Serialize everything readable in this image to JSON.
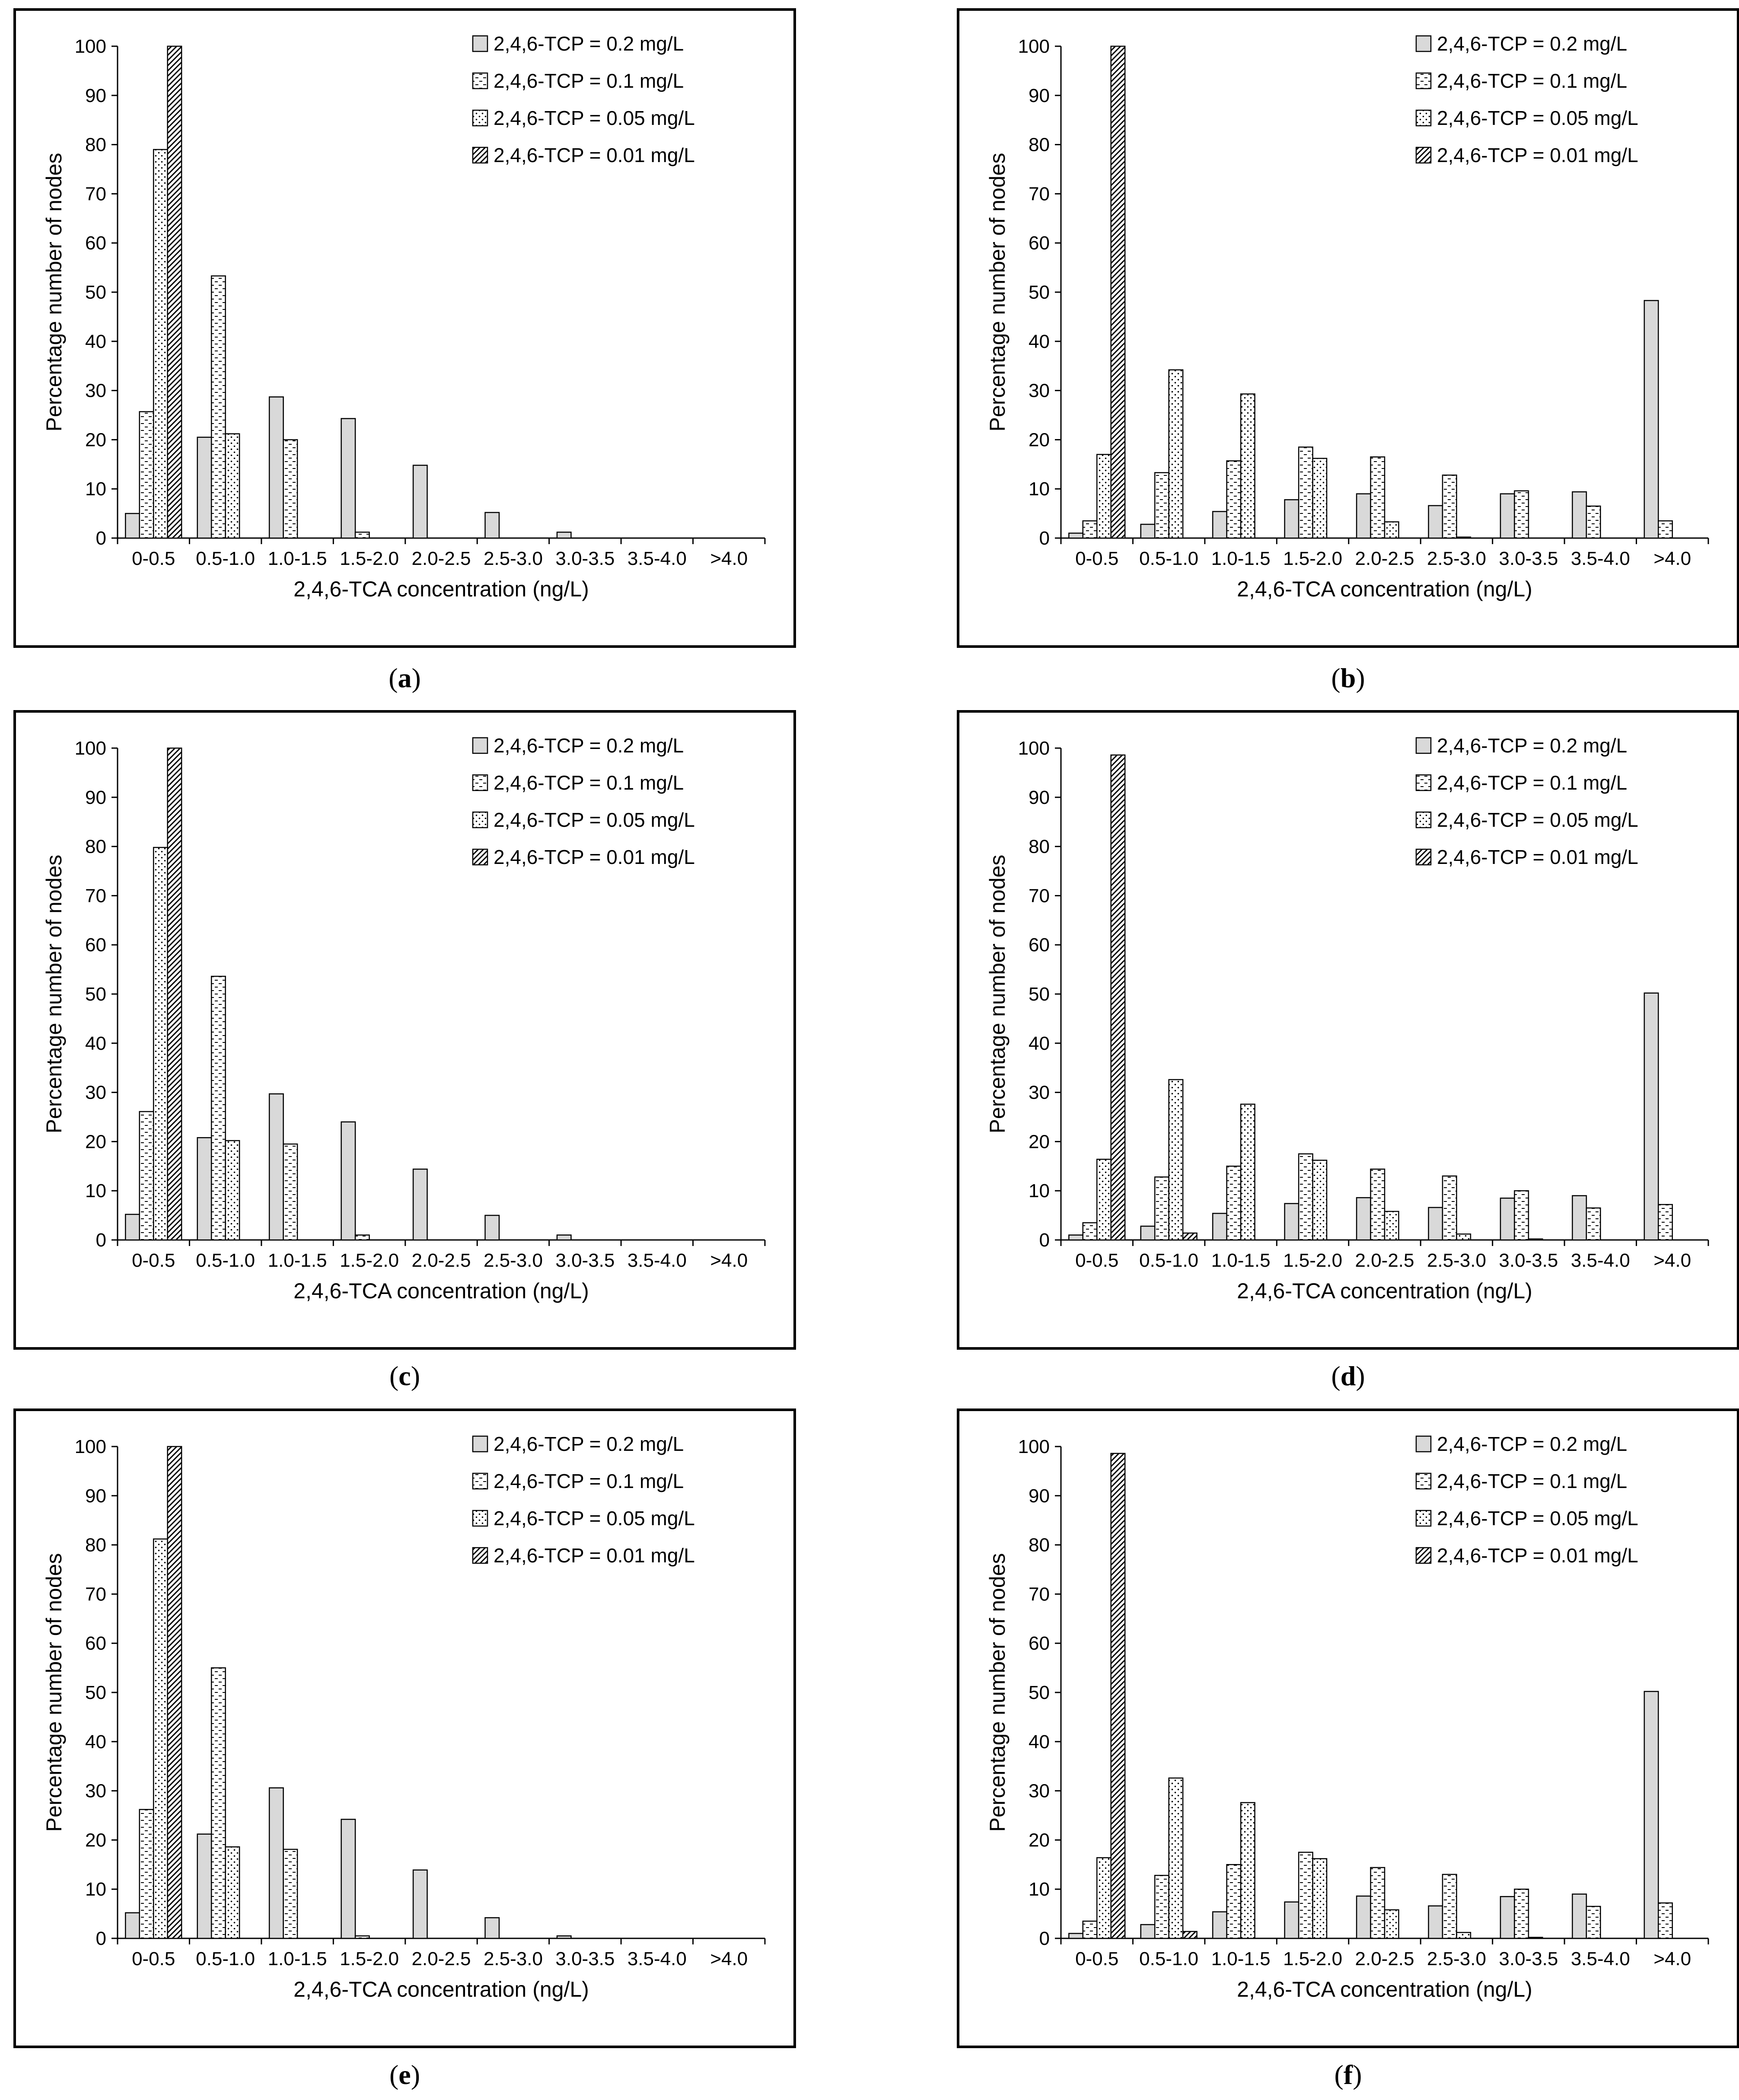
{
  "figure": {
    "captions": [
      "(a)",
      "(b)",
      "(c)",
      "(d)",
      "(e)",
      "(f)"
    ],
    "caption_letters": [
      "a",
      "b",
      "c",
      "d",
      "e",
      "f"
    ]
  },
  "styles": {
    "series_fills": [
      "#d9d9d9",
      "pattern-white",
      "pattern-dots",
      "pattern-hatch"
    ]
  },
  "chart_data": [
    {
      "type": "bar",
      "panel": "a",
      "title": "",
      "xlabel": "2,4,6-TCA concentration (ng/L)",
      "ylabel": "Percentage number of nodes",
      "ylim": [
        0,
        100
      ],
      "yticks": [
        "0",
        "10",
        "20",
        "30",
        "40",
        "50",
        "60",
        "70",
        "80",
        "90",
        "100"
      ],
      "categories": [
        "0-0.5",
        "0.5-1.0",
        "1.0-1.5",
        "1.5-2.0",
        "2.0-2.5",
        "2.5-3.0",
        "3.0-3.5",
        "3.5-4.0",
        ">4.0"
      ],
      "legend_position": "top-right",
      "series": [
        {
          "name": "2,4,6-TCP = 0.2 mg/L",
          "values": [
            5,
            20.5,
            28.7,
            24.3,
            14.8,
            5.2,
            1.2,
            0,
            0
          ]
        },
        {
          "name": "2,4,6-TCP = 0.1 mg/L",
          "values": [
            25.7,
            53.3,
            20,
            1.2,
            0,
            0,
            0,
            0,
            0
          ]
        },
        {
          "name": "2,4,6-TCP = 0.05 mg/L",
          "values": [
            79,
            21.2,
            0,
            0,
            0,
            0,
            0,
            0,
            0
          ]
        },
        {
          "name": "2,4,6-TCP = 0.01 mg/L",
          "values": [
            100,
            0,
            0,
            0,
            0,
            0,
            0,
            0,
            0
          ]
        }
      ]
    },
    {
      "type": "bar",
      "panel": "b",
      "title": "",
      "xlabel": "2,4,6-TCA concentration (ng/L)",
      "ylabel": "Percentage number of nodes",
      "ylim": [
        0,
        100
      ],
      "yticks": [
        "0",
        "10",
        "20",
        "30",
        "40",
        "50",
        "60",
        "70",
        "80",
        "90",
        "100"
      ],
      "categories": [
        "0-0.5",
        "0.5-1.0",
        "1.0-1.5",
        "1.5-2.0",
        "2.0-2.5",
        "2.5-3.0",
        "3.0-3.5",
        "3.5-4.0",
        ">4.0"
      ],
      "legend_position": "top-right",
      "series": [
        {
          "name": "2,4,6-TCP = 0.2 mg/L",
          "values": [
            1,
            2.8,
            5.4,
            7.8,
            9,
            6.6,
            9,
            9.4,
            48.3
          ]
        },
        {
          "name": "2,4,6-TCP = 0.1 mg/L",
          "values": [
            3.5,
            13.3,
            15.7,
            18.5,
            16.5,
            12.8,
            9.6,
            6.5,
            3.5
          ]
        },
        {
          "name": "2,4,6-TCP = 0.05 mg/L",
          "values": [
            17,
            34.2,
            29.3,
            16.2,
            3.3,
            0.2,
            0,
            0,
            0
          ]
        },
        {
          "name": "2,4,6-TCP = 0.01 mg/L",
          "values": [
            100,
            0,
            0,
            0,
            0,
            0,
            0,
            0,
            0
          ]
        }
      ]
    },
    {
      "type": "bar",
      "panel": "c",
      "title": "",
      "xlabel": "2,4,6-TCA concentration (ng/L)",
      "ylabel": "Percentage number of nodes",
      "ylim": [
        0,
        100
      ],
      "yticks": [
        "0",
        "10",
        "20",
        "30",
        "40",
        "50",
        "60",
        "70",
        "80",
        "90",
        "100"
      ],
      "categories": [
        "0-0.5",
        "0.5-1.0",
        "1.0-1.5",
        "1.5-2.0",
        "2.0-2.5",
        "2.5-3.0",
        "3.0-3.5",
        "3.5-4.0",
        ">4.0"
      ],
      "legend_position": "top-right",
      "series": [
        {
          "name": "2,4,6-TCP = 0.2 mg/L",
          "values": [
            5.2,
            20.8,
            29.7,
            24,
            14.4,
            5,
            1,
            0,
            0
          ]
        },
        {
          "name": "2,4,6-TCP = 0.1 mg/L",
          "values": [
            26.1,
            53.6,
            19.5,
            1,
            0,
            0,
            0,
            0,
            0
          ]
        },
        {
          "name": "2,4,6-TCP = 0.05 mg/L",
          "values": [
            79.8,
            20.2,
            0,
            0,
            0,
            0,
            0,
            0,
            0
          ]
        },
        {
          "name": "2,4,6-TCP = 0.01 mg/L",
          "values": [
            100,
            0,
            0,
            0,
            0,
            0,
            0,
            0,
            0
          ]
        }
      ]
    },
    {
      "type": "bar",
      "panel": "d",
      "title": "",
      "xlabel": "2,4,6-TCA concentration (ng/L)",
      "ylabel": "Percentage number of nodes",
      "ylim": [
        0,
        100
      ],
      "yticks": [
        "0",
        "10",
        "20",
        "30",
        "40",
        "50",
        "60",
        "70",
        "80",
        "90",
        "100"
      ],
      "categories": [
        "0-0.5",
        "0.5-1.0",
        "1.0-1.5",
        "1.5-2.0",
        "2.0-2.5",
        "2.5-3.0",
        "3.0-3.5",
        "3.5-4.0",
        ">4.0"
      ],
      "legend_position": "top-right",
      "series": [
        {
          "name": "2,4,6-TCP = 0.2 mg/L",
          "values": [
            1,
            2.8,
            5.4,
            7.4,
            8.6,
            6.6,
            8.5,
            9,
            50.2
          ]
        },
        {
          "name": "2,4,6-TCP = 0.1 mg/L",
          "values": [
            3.5,
            12.8,
            15,
            17.5,
            14.4,
            13,
            10,
            6.5,
            7.2
          ]
        },
        {
          "name": "2,4,6-TCP = 0.05 mg/L",
          "values": [
            16.4,
            32.6,
            27.6,
            16.2,
            5.8,
            1.2,
            0.2,
            0,
            0
          ]
        },
        {
          "name": "2,4,6-TCP = 0.01 mg/L",
          "values": [
            98.6,
            1.4,
            0,
            0,
            0,
            0,
            0,
            0,
            0
          ]
        }
      ]
    },
    {
      "type": "bar",
      "panel": "e",
      "title": "",
      "xlabel": "2,4,6-TCA concentration (ng/L)",
      "ylabel": "Percentage number of nodes",
      "ylim": [
        0,
        100
      ],
      "yticks": [
        "0",
        "10",
        "20",
        "30",
        "40",
        "50",
        "60",
        "70",
        "80",
        "90",
        "100"
      ],
      "categories": [
        "0-0.5",
        "0.5-1.0",
        "1.0-1.5",
        "1.5-2.0",
        "2.0-2.5",
        "2.5-3.0",
        "3.0-3.5",
        "3.5-4.0",
        ">4.0"
      ],
      "legend_position": "top-right",
      "series": [
        {
          "name": "2,4,6-TCP = 0.2 mg/L",
          "values": [
            5.2,
            21.2,
            30.6,
            24.2,
            13.9,
            4.2,
            0.5,
            0,
            0
          ]
        },
        {
          "name": "2,4,6-TCP = 0.1 mg/L",
          "values": [
            26.2,
            55,
            18.1,
            0.5,
            0,
            0,
            0,
            0,
            0
          ]
        },
        {
          "name": "2,4,6-TCP = 0.05 mg/L",
          "values": [
            81.2,
            18.6,
            0,
            0,
            0,
            0,
            0,
            0,
            0
          ]
        },
        {
          "name": "2,4,6-TCP = 0.01 mg/L",
          "values": [
            100,
            0,
            0,
            0,
            0,
            0,
            0,
            0,
            0
          ]
        }
      ]
    },
    {
      "type": "bar",
      "panel": "f",
      "title": "",
      "xlabel": "2,4,6-TCA concentration (ng/L)",
      "ylabel": "Percentage number of nodes",
      "ylim": [
        0,
        100
      ],
      "yticks": [
        "0",
        "10",
        "20",
        "30",
        "40",
        "50",
        "60",
        "70",
        "80",
        "90",
        "100"
      ],
      "categories": [
        "0-0.5",
        "0.5-1.0",
        "1.0-1.5",
        "1.5-2.0",
        "2.0-2.5",
        "2.5-3.0",
        "3.0-3.5",
        "3.5-4.0",
        ">4.0"
      ],
      "legend_position": "top-right",
      "series": [
        {
          "name": "2,4,6-TCP = 0.2 mg/L",
          "values": [
            1,
            2.8,
            5.4,
            7.4,
            8.6,
            6.6,
            8.5,
            9,
            50.2
          ]
        },
        {
          "name": "2,4,6-TCP = 0.1 mg/L",
          "values": [
            3.5,
            12.8,
            15,
            17.5,
            14.4,
            13,
            10,
            6.5,
            7.2
          ]
        },
        {
          "name": "2,4,6-TCP = 0.05 mg/L",
          "values": [
            16.4,
            32.6,
            27.6,
            16.2,
            5.8,
            1.2,
            0.2,
            0,
            0
          ]
        },
        {
          "name": "2,4,6-TCP = 0.01 mg/L",
          "values": [
            98.6,
            1.4,
            0,
            0,
            0,
            0,
            0,
            0,
            0
          ]
        }
      ]
    }
  ]
}
